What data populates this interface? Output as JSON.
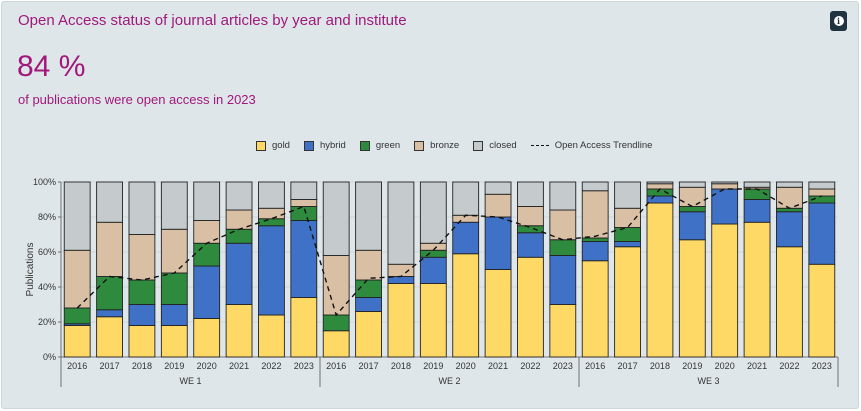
{
  "header": {
    "title": "Open Access status of journal articles by year and institute",
    "kpi_value": "84 %",
    "kpi_caption": "of publications were open access in 2023",
    "info_icon": "info-icon"
  },
  "colors": {
    "gold": "#ffd966",
    "hybrid": "#3f72c6",
    "green": "#2e8b3e",
    "bronze": "#d9bfa4",
    "closed": "#c5cbcd",
    "accent": "#a0197a"
  },
  "chart_data": {
    "type": "bar",
    "stacked": true,
    "ylabel": "Publications",
    "y_ticks": [
      "0%",
      "20%",
      "40%",
      "60%",
      "80%",
      "100%"
    ],
    "ylim": [
      0,
      100
    ],
    "grid": true,
    "legend_position": "top",
    "groups": [
      {
        "name": "WE 1",
        "years": [
          "2016",
          "2017",
          "2018",
          "2019",
          "2020",
          "2021",
          "2022",
          "2023"
        ]
      },
      {
        "name": "WE 2",
        "years": [
          "2016",
          "2017",
          "2018",
          "2019",
          "2020",
          "2021",
          "2022",
          "2023"
        ]
      },
      {
        "name": "WE 3",
        "years": [
          "2016",
          "2017",
          "2018",
          "2019",
          "2020",
          "2021",
          "2022",
          "2023"
        ]
      }
    ],
    "series": [
      {
        "name": "gold",
        "values": [
          18,
          23,
          18,
          18,
          22,
          30,
          24,
          34,
          15,
          26,
          42,
          42,
          59,
          50,
          57,
          30,
          55,
          63,
          88,
          67,
          76,
          77,
          63,
          53
        ]
      },
      {
        "name": "hybrid",
        "values": [
          1,
          4,
          12,
          12,
          30,
          35,
          51,
          44,
          0,
          8,
          4,
          15,
          18,
          30,
          14,
          28,
          11,
          3,
          4,
          16,
          20,
          13,
          20,
          35
        ]
      },
      {
        "name": "green",
        "values": [
          9,
          19,
          14,
          18,
          13,
          8,
          4,
          8,
          9,
          10,
          0,
          4,
          0,
          0,
          4,
          9,
          2,
          8,
          4,
          3,
          0,
          6,
          2,
          4
        ]
      },
      {
        "name": "bronze",
        "values": [
          33,
          31,
          26,
          25,
          13,
          11,
          6,
          4,
          34,
          17,
          7,
          4,
          4,
          13,
          11,
          17,
          27,
          11,
          3,
          11,
          3,
          1,
          12,
          4
        ]
      },
      {
        "name": "closed",
        "values": [
          39,
          23,
          30,
          27,
          22,
          16,
          15,
          10,
          42,
          39,
          47,
          35,
          19,
          7,
          14,
          16,
          5,
          15,
          1,
          3,
          1,
          3,
          3,
          4
        ]
      }
    ],
    "trendline": {
      "name": "Open Access Trendline",
      "values": [
        28,
        46,
        44,
        48,
        65,
        73,
        79,
        86,
        24,
        45,
        46,
        61,
        81,
        80,
        74,
        67,
        69,
        74,
        96,
        86,
        96,
        96,
        85,
        92
      ]
    }
  }
}
